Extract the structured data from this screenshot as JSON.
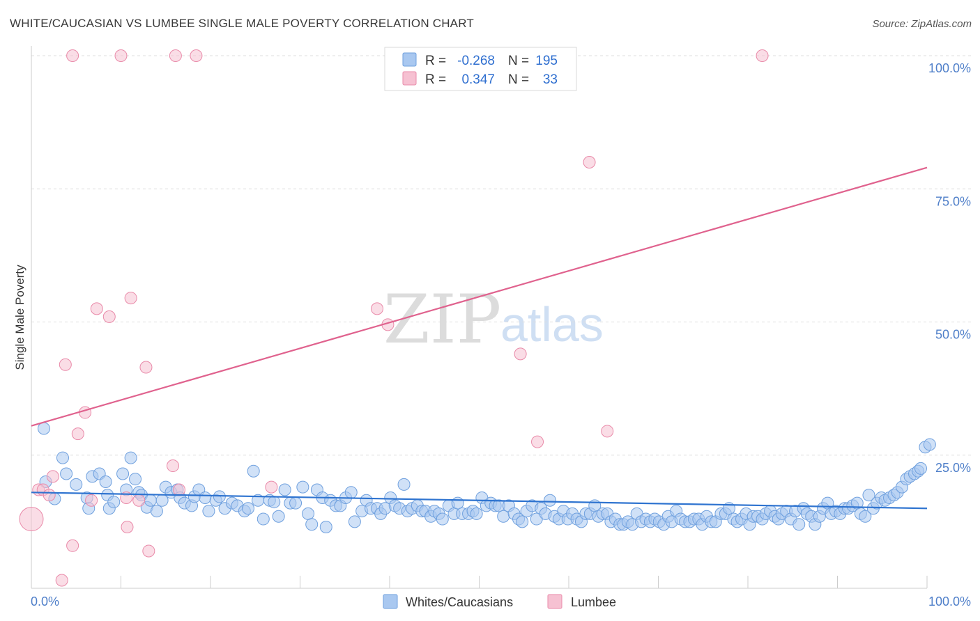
{
  "chart_data": {
    "type": "scatter",
    "title": "WHITE/CAUCASIAN VS LUMBEE SINGLE MALE POVERTY CORRELATION CHART",
    "source": "Source: ZipAtlas.com",
    "xlabel": "",
    "ylabel": "Single Male Poverty",
    "xlim": [
      0,
      100
    ],
    "ylim": [
      0,
      100
    ],
    "x_tick_labels": [
      "0.0%",
      "100.0%"
    ],
    "y_tick_labels": [
      "100.0%",
      "75.0%",
      "50.0%",
      "25.0%"
    ],
    "y_tick_values": [
      100,
      75,
      50,
      25
    ],
    "watermark": {
      "zip": "ZIP",
      "atlas": "atlas"
    },
    "legend": {
      "r_label": "R =",
      "n_label": "N =",
      "entries": [
        {
          "name": "Whites/Caucasians",
          "r": "-0.268",
          "n": "195",
          "color": "#a9c8f0",
          "stroke": "#6fa0de"
        },
        {
          "name": "Lumbee",
          "r": "0.347",
          "n": "33",
          "color": "#f6c1d2",
          "stroke": "#e98aa9"
        }
      ]
    },
    "colors": {
      "blue_line": "#2f74d0",
      "pink_line": "#e0628e",
      "tick_text": "#4f7fc9"
    },
    "trend_lines": [
      {
        "series": "Whites/Caucasians",
        "x": [
          0,
          100
        ],
        "y": [
          18.0,
          15.0
        ]
      },
      {
        "series": "Lumbee",
        "x": [
          0,
          100
        ],
        "y": [
          30.5,
          79.0
        ]
      }
    ],
    "series": [
      {
        "name": "Whites/Caucasians",
        "points": [
          [
            1.4,
            30.0
          ],
          [
            2.6,
            16.8
          ],
          [
            1.6,
            20.0
          ],
          [
            3.5,
            24.5
          ],
          [
            3.9,
            21.5
          ],
          [
            5.0,
            19.5
          ],
          [
            6.2,
            17.0
          ],
          [
            6.4,
            15.0
          ],
          [
            6.8,
            21.0
          ],
          [
            7.6,
            21.5
          ],
          [
            8.3,
            20.0
          ],
          [
            8.5,
            17.5
          ],
          [
            8.7,
            15.0
          ],
          [
            9.2,
            16.2
          ],
          [
            10.2,
            21.5
          ],
          [
            10.6,
            18.5
          ],
          [
            11.1,
            24.5
          ],
          [
            11.6,
            20.5
          ],
          [
            12.0,
            18.0
          ],
          [
            12.3,
            17.5
          ],
          [
            12.9,
            15.2
          ],
          [
            13.3,
            16.5
          ],
          [
            14.0,
            14.5
          ],
          [
            14.6,
            16.5
          ],
          [
            15.0,
            19.0
          ],
          [
            15.6,
            18.0
          ],
          [
            16.3,
            18.5
          ],
          [
            16.6,
            17.0
          ],
          [
            17.1,
            16.0
          ],
          [
            17.9,
            15.5
          ],
          [
            18.2,
            17.2
          ],
          [
            18.7,
            18.5
          ],
          [
            19.4,
            17.0
          ],
          [
            19.8,
            14.5
          ],
          [
            20.6,
            16.5
          ],
          [
            21.0,
            17.2
          ],
          [
            21.6,
            15.0
          ],
          [
            22.4,
            16.0
          ],
          [
            23.0,
            15.5
          ],
          [
            23.8,
            14.5
          ],
          [
            24.2,
            15.0
          ],
          [
            24.8,
            22.0
          ],
          [
            25.3,
            16.5
          ],
          [
            25.9,
            13.0
          ],
          [
            26.6,
            16.5
          ],
          [
            27.1,
            16.2
          ],
          [
            27.6,
            13.5
          ],
          [
            28.3,
            18.5
          ],
          [
            28.9,
            16.0
          ],
          [
            29.5,
            16.0
          ],
          [
            30.3,
            19.0
          ],
          [
            30.9,
            14.0
          ],
          [
            31.3,
            12.0
          ],
          [
            31.9,
            18.5
          ],
          [
            32.5,
            17.0
          ],
          [
            32.9,
            11.5
          ],
          [
            33.4,
            16.5
          ],
          [
            34.0,
            15.5
          ],
          [
            34.5,
            15.5
          ],
          [
            35.1,
            17.0
          ],
          [
            35.7,
            18.0
          ],
          [
            36.1,
            12.5
          ],
          [
            36.9,
            14.5
          ],
          [
            37.4,
            16.5
          ],
          [
            37.9,
            15.0
          ],
          [
            38.6,
            15.0
          ],
          [
            39.0,
            14.0
          ],
          [
            39.5,
            15.0
          ],
          [
            40.1,
            17.0
          ],
          [
            40.6,
            15.5
          ],
          [
            41.1,
            15.0
          ],
          [
            41.6,
            19.5
          ],
          [
            42.0,
            14.5
          ],
          [
            42.5,
            15.0
          ],
          [
            43.1,
            15.5
          ],
          [
            43.6,
            14.5
          ],
          [
            44.0,
            14.5
          ],
          [
            44.6,
            13.5
          ],
          [
            45.0,
            14.5
          ],
          [
            45.5,
            14.0
          ],
          [
            45.9,
            13.0
          ],
          [
            46.6,
            15.5
          ],
          [
            47.2,
            14.0
          ],
          [
            47.6,
            16.0
          ],
          [
            48.1,
            14.0
          ],
          [
            48.8,
            14.0
          ],
          [
            49.3,
            14.5
          ],
          [
            49.7,
            14.0
          ],
          [
            50.3,
            17.0
          ],
          [
            50.8,
            15.5
          ],
          [
            51.3,
            16.0
          ],
          [
            51.8,
            15.5
          ],
          [
            52.2,
            15.5
          ],
          [
            52.7,
            13.5
          ],
          [
            53.3,
            15.5
          ],
          [
            53.9,
            14.0
          ],
          [
            54.4,
            13.0
          ],
          [
            54.8,
            12.5
          ],
          [
            55.3,
            14.5
          ],
          [
            55.9,
            15.5
          ],
          [
            56.4,
            13.0
          ],
          [
            56.9,
            15.0
          ],
          [
            57.4,
            14.0
          ],
          [
            57.9,
            16.5
          ],
          [
            58.4,
            13.5
          ],
          [
            58.9,
            13.0
          ],
          [
            59.4,
            14.5
          ],
          [
            59.9,
            13.0
          ],
          [
            60.4,
            14.0
          ],
          [
            60.9,
            13.0
          ],
          [
            61.4,
            12.5
          ],
          [
            61.9,
            14.0
          ],
          [
            62.4,
            14.0
          ],
          [
            62.9,
            15.5
          ],
          [
            63.3,
            13.5
          ],
          [
            63.8,
            14.0
          ],
          [
            64.3,
            14.0
          ],
          [
            64.7,
            12.5
          ],
          [
            65.2,
            13.0
          ],
          [
            65.7,
            12.0
          ],
          [
            66.1,
            12.0
          ],
          [
            66.6,
            12.5
          ],
          [
            67.1,
            12.0
          ],
          [
            67.6,
            14.0
          ],
          [
            68.1,
            12.5
          ],
          [
            68.6,
            13.0
          ],
          [
            69.1,
            12.5
          ],
          [
            69.6,
            13.0
          ],
          [
            70.1,
            12.5
          ],
          [
            70.6,
            12.0
          ],
          [
            71.1,
            13.5
          ],
          [
            71.5,
            12.5
          ],
          [
            72.0,
            14.5
          ],
          [
            72.5,
            13.0
          ],
          [
            73.0,
            12.5
          ],
          [
            73.5,
            12.5
          ],
          [
            74.0,
            13.0
          ],
          [
            74.5,
            13.0
          ],
          [
            74.9,
            12.0
          ],
          [
            75.4,
            13.5
          ],
          [
            75.9,
            12.5
          ],
          [
            76.4,
            12.5
          ],
          [
            77.0,
            14.0
          ],
          [
            77.5,
            14.0
          ],
          [
            77.9,
            15.0
          ],
          [
            78.4,
            13.0
          ],
          [
            78.8,
            12.5
          ],
          [
            79.3,
            13.0
          ],
          [
            79.8,
            14.0
          ],
          [
            80.2,
            12.0
          ],
          [
            80.6,
            13.5
          ],
          [
            81.1,
            13.5
          ],
          [
            81.6,
            13.0
          ],
          [
            82.0,
            14.0
          ],
          [
            82.5,
            14.5
          ],
          [
            83.0,
            13.5
          ],
          [
            83.4,
            13.0
          ],
          [
            83.8,
            14.0
          ],
          [
            84.3,
            14.5
          ],
          [
            84.8,
            13.0
          ],
          [
            85.3,
            14.5
          ],
          [
            85.7,
            12.0
          ],
          [
            86.2,
            15.0
          ],
          [
            86.6,
            14.0
          ],
          [
            87.1,
            13.5
          ],
          [
            87.5,
            12.0
          ],
          [
            88.0,
            13.5
          ],
          [
            88.4,
            15.0
          ],
          [
            88.9,
            16.0
          ],
          [
            89.3,
            14.0
          ],
          [
            89.8,
            14.5
          ],
          [
            90.3,
            14.0
          ],
          [
            90.8,
            15.0
          ],
          [
            91.2,
            15.0
          ],
          [
            91.7,
            15.5
          ],
          [
            92.2,
            16.0
          ],
          [
            92.6,
            14.0
          ],
          [
            93.1,
            13.5
          ],
          [
            93.5,
            17.5
          ],
          [
            94.0,
            15.0
          ],
          [
            94.4,
            16.0
          ],
          [
            94.9,
            17.0
          ],
          [
            95.3,
            16.5
          ],
          [
            95.8,
            17.0
          ],
          [
            96.3,
            17.5
          ],
          [
            96.7,
            18.0
          ],
          [
            97.2,
            19.0
          ],
          [
            97.7,
            20.5
          ],
          [
            98.1,
            21.0
          ],
          [
            98.6,
            21.5
          ],
          [
            99.0,
            22.0
          ],
          [
            99.3,
            22.5
          ],
          [
            99.8,
            26.5
          ],
          [
            100.3,
            27.0
          ]
        ]
      },
      {
        "name": "Lumbee",
        "points": [
          [
            0.0,
            13.0
          ],
          [
            0.8,
            18.5
          ],
          [
            1.3,
            18.5
          ],
          [
            2.0,
            17.5
          ],
          [
            2.4,
            21.0
          ],
          [
            3.4,
            1.5
          ],
          [
            3.8,
            42.0
          ],
          [
            4.6,
            8.0
          ],
          [
            4.6,
            100.0
          ],
          [
            5.2,
            29.0
          ],
          [
            6.0,
            33.0
          ],
          [
            6.7,
            16.5
          ],
          [
            7.3,
            52.5
          ],
          [
            8.7,
            51.0
          ],
          [
            10.0,
            100.0
          ],
          [
            10.6,
            17.0
          ],
          [
            10.7,
            11.5
          ],
          [
            11.1,
            54.5
          ],
          [
            12.0,
            16.5
          ],
          [
            12.8,
            41.5
          ],
          [
            13.1,
            7.0
          ],
          [
            15.8,
            23.0
          ],
          [
            16.1,
            100.0
          ],
          [
            16.5,
            18.5
          ],
          [
            18.4,
            100.0
          ],
          [
            26.8,
            19.0
          ],
          [
            38.6,
            52.5
          ],
          [
            39.8,
            49.5
          ],
          [
            54.6,
            44.0
          ],
          [
            56.5,
            27.5
          ],
          [
            62.3,
            80.0
          ],
          [
            64.3,
            29.5
          ],
          [
            81.6,
            100.0
          ]
        ]
      }
    ]
  }
}
